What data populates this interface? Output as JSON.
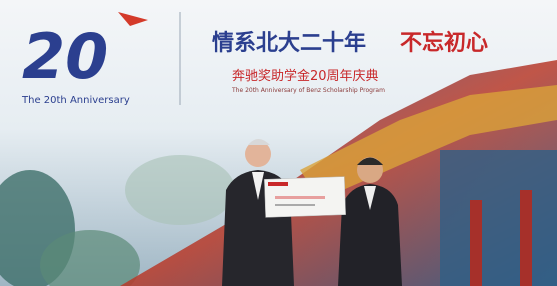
{
  "logo": {
    "number": "20",
    "caption": "The 20th Anniversary"
  },
  "banner": {
    "headline": "情系北大二十年",
    "slogan": "不忘初心",
    "subtitle": "奔驰奖助学金20周年庆典",
    "subtitle_en": "The 20th Anniversary of Benz Scholarship Program"
  }
}
